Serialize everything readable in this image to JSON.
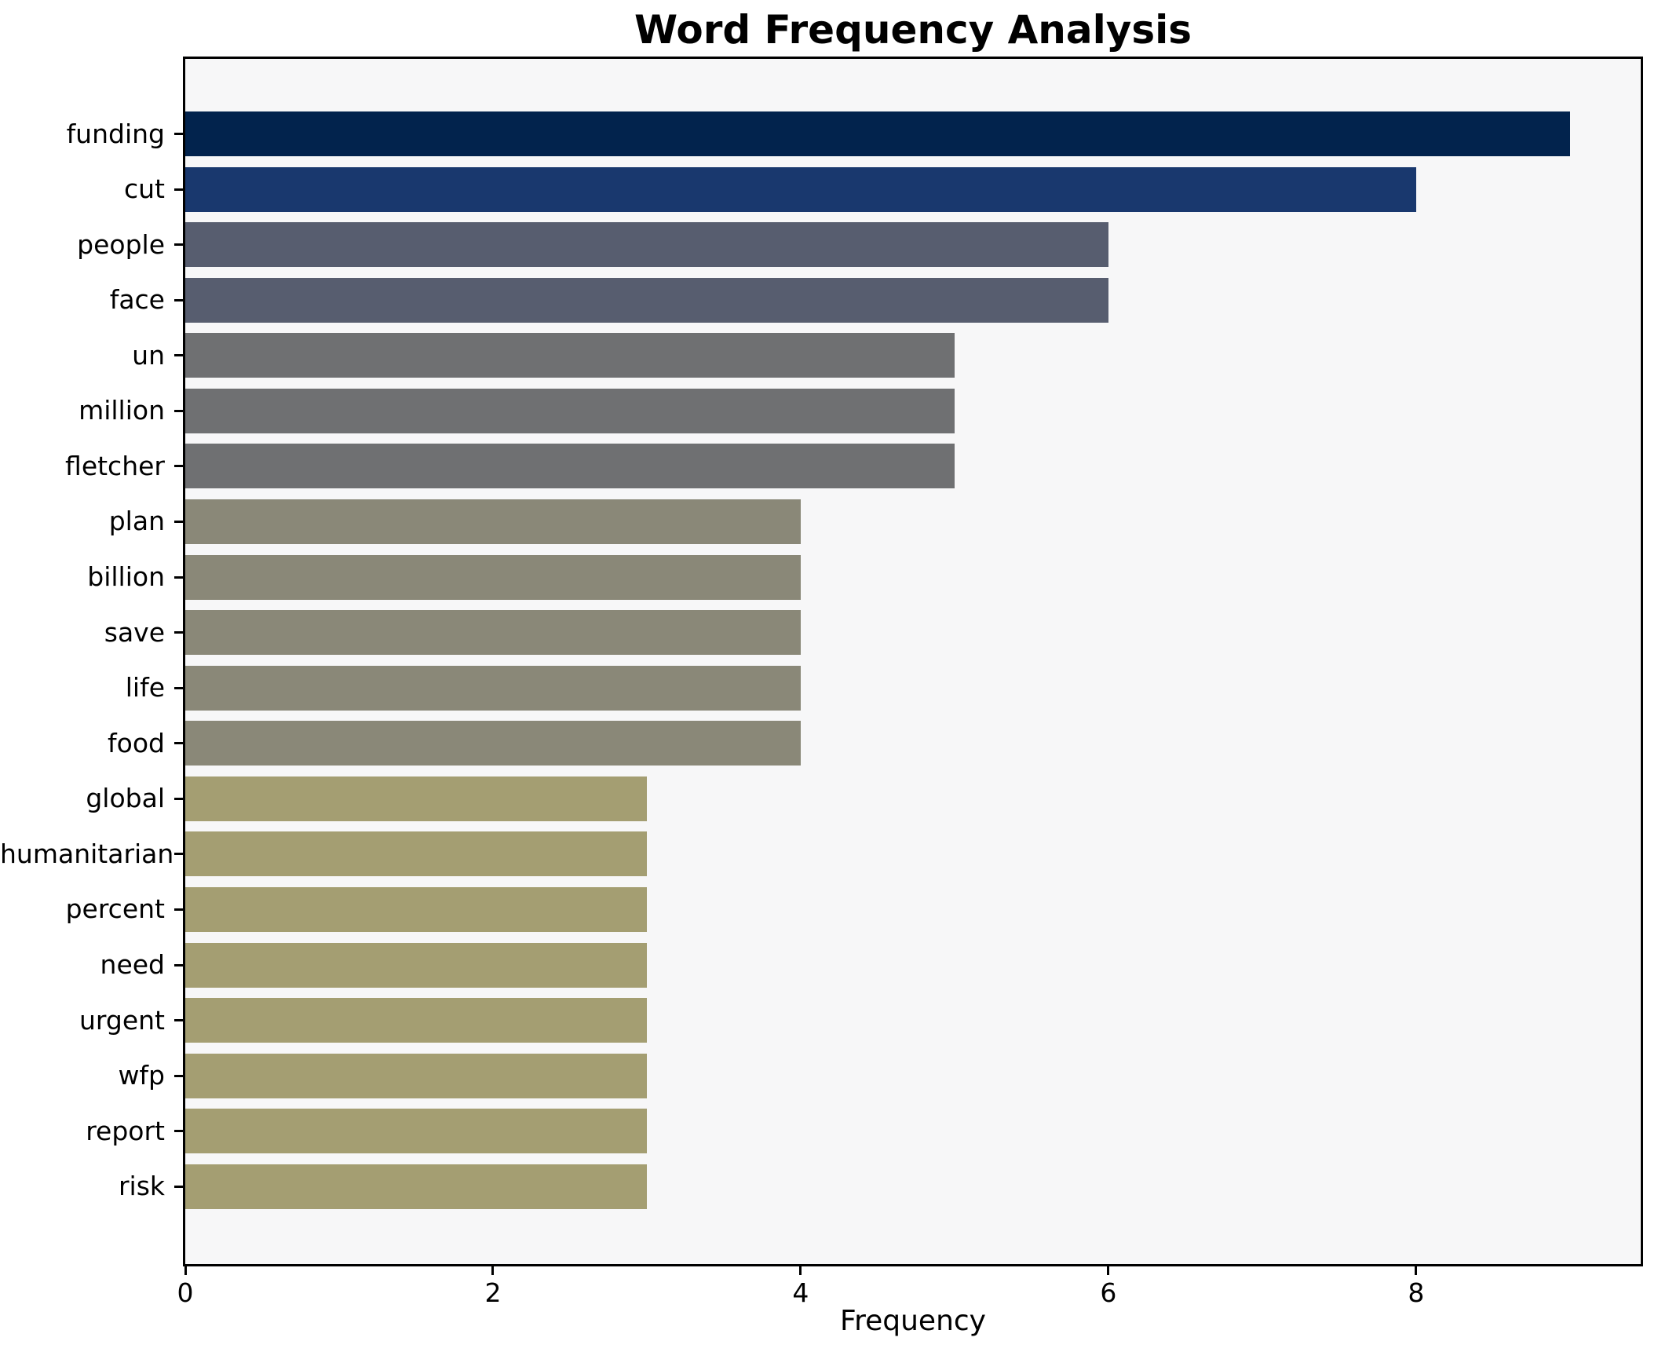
{
  "chart_data": {
    "type": "bar",
    "orientation": "horizontal",
    "title": "Word Frequency Analysis",
    "xlabel": "Frequency",
    "ylabel": "",
    "categories": [
      "funding",
      "cut",
      "people",
      "face",
      "un",
      "million",
      "fletcher",
      "plan",
      "billion",
      "save",
      "life",
      "food",
      "global",
      "humanitarian",
      "percent",
      "need",
      "urgent",
      "wfp",
      "report",
      "risk"
    ],
    "values": [
      9,
      8,
      6,
      6,
      5,
      5,
      5,
      4,
      4,
      4,
      4,
      4,
      3,
      3,
      3,
      3,
      3,
      3,
      3,
      3
    ],
    "bar_colors": [
      "#02234d",
      "#19386e",
      "#575d6f",
      "#575d6f",
      "#6f7072",
      "#6f7072",
      "#6f7072",
      "#8a8878",
      "#8a8878",
      "#8a8878",
      "#8a8878",
      "#8a8878",
      "#a49e72",
      "#a49e72",
      "#a49e72",
      "#a49e72",
      "#a49e72",
      "#a49e72",
      "#a49e72",
      "#a49e72"
    ],
    "x_ticks": [
      0,
      2,
      4,
      6,
      8
    ],
    "xlim": [
      0,
      9.46
    ],
    "grid": false,
    "legend": false,
    "colormap": "cividis",
    "plot_bg": "#f7f7f8",
    "figure_bg": "#ffffff",
    "spine_color": "#000000",
    "text_color": "#000000"
  }
}
